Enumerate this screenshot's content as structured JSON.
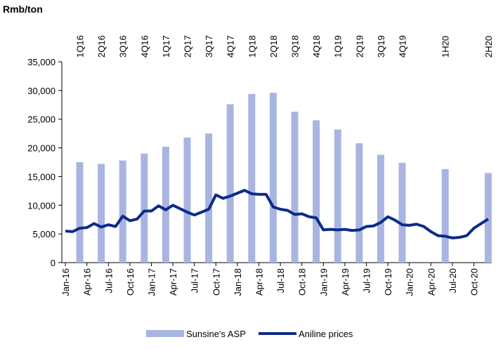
{
  "chart_data": {
    "type": "bar_line",
    "y_axis_label": "Rmb/ton",
    "categories": [
      "Jan-16",
      null,
      null,
      "Apr-16",
      null,
      null,
      "Jul-16",
      null,
      null,
      "Oct-16",
      null,
      null,
      "Jan-17",
      null,
      null,
      "Apr-17",
      null,
      null,
      "Jul-17",
      null,
      null,
      "Oct-17",
      null,
      null,
      "Jan-18",
      null,
      null,
      "Apr-18",
      null,
      null,
      "Jul-18",
      null,
      null,
      "Oct-18",
      null,
      null,
      "Jan-19",
      null,
      null,
      "Apr-19",
      null,
      null,
      "Jul-19",
      null,
      null,
      "Oct-19",
      null,
      null,
      "Jan-20",
      null,
      null,
      "Apr-20",
      null,
      null,
      "Jul-20",
      null,
      null,
      "Oct-20",
      null,
      null
    ],
    "top_categories": [
      null,
      null,
      "1Q16",
      null,
      null,
      "2Q16",
      null,
      null,
      "3Q16",
      null,
      null,
      "4Q16",
      null,
      null,
      "1Q17",
      null,
      null,
      "2Q17",
      null,
      null,
      "3Q17",
      null,
      null,
      "4Q17",
      null,
      null,
      "1Q18",
      null,
      null,
      "2Q18",
      null,
      null,
      "3Q18",
      null,
      null,
      "4Q18",
      null,
      null,
      "1Q19",
      null,
      null,
      "2Q19",
      null,
      null,
      "3Q19",
      null,
      null,
      "4Q19",
      null,
      null,
      null,
      null,
      null,
      "1H20",
      null,
      null,
      null,
      null,
      null,
      "2H20"
    ],
    "series": [
      {
        "name": "Sunsine's ASP",
        "type": "bar",
        "color": "#a9b5e0",
        "values": [
          null,
          null,
          17500,
          null,
          null,
          17200,
          null,
          null,
          17800,
          null,
          null,
          19000,
          null,
          null,
          20200,
          null,
          null,
          21800,
          null,
          null,
          22500,
          null,
          null,
          27600,
          null,
          null,
          29400,
          null,
          null,
          29600,
          null,
          null,
          26300,
          null,
          null,
          24800,
          null,
          null,
          23200,
          null,
          null,
          20800,
          null,
          null,
          18800,
          null,
          null,
          17400,
          null,
          null,
          null,
          null,
          null,
          16300,
          null,
          null,
          null,
          null,
          null,
          15600
        ]
      },
      {
        "name": "Aniline prices",
        "type": "line",
        "color": "#0d2a8a",
        "values": [
          5500,
          5400,
          6000,
          6100,
          6800,
          6200,
          6600,
          6300,
          8100,
          7300,
          7600,
          9000,
          9000,
          9900,
          9200,
          10000,
          9400,
          8800,
          8300,
          8800,
          9300,
          11800,
          11200,
          11600,
          12100,
          12600,
          12000,
          11900,
          11900,
          9700,
          9300,
          9100,
          8400,
          8500,
          8000,
          7800,
          5700,
          5800,
          5700,
          5800,
          5600,
          5700,
          6300,
          6400,
          7000,
          8000,
          7400,
          6600,
          6500,
          6700,
          6300,
          5400,
          4700,
          4600,
          4300,
          4400,
          4700,
          6000,
          6800,
          7600
        ]
      }
    ],
    "ylim": [
      0,
      35000
    ],
    "yticks": [
      {
        "value": 0,
        "label": "0"
      },
      {
        "value": 5000,
        "label": "5,000"
      },
      {
        "value": 10000,
        "label": "10,000"
      },
      {
        "value": 15000,
        "label": "15,000"
      },
      {
        "value": 20000,
        "label": "20,000"
      },
      {
        "value": 25000,
        "label": "25,000"
      },
      {
        "value": 30000,
        "label": "30,000"
      },
      {
        "value": 35000,
        "label": "35,000"
      }
    ],
    "legend": "bottom"
  }
}
